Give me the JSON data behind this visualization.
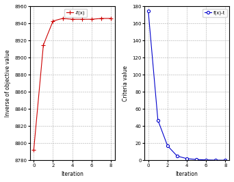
{
  "left_x": [
    0,
    1,
    2,
    3,
    4,
    5,
    6,
    7,
    8
  ],
  "left_y": [
    8792,
    8915,
    8943,
    8946,
    8945,
    8945,
    8945,
    8946,
    8946
  ],
  "left_ylabel": "Inverse of objective value",
  "left_xlabel": "Iteration",
  "left_legend": "-f(x)",
  "left_ylim": [
    8780,
    8960
  ],
  "left_yticks": [
    8780,
    8800,
    8820,
    8840,
    8860,
    8880,
    8900,
    8920,
    8940,
    8960
  ],
  "left_xticks": [
    0,
    2,
    4,
    6,
    8
  ],
  "left_color": "#cc0000",
  "right_x": [
    0,
    1,
    2,
    3,
    4,
    5,
    6,
    7,
    8
  ],
  "right_y": [
    175,
    47,
    17,
    5,
    2,
    1,
    0.5,
    0.2,
    0.1
  ],
  "right_ylabel": "Criteria value",
  "right_xlabel": "Iteration",
  "right_legend": "f(x)-t",
  "right_ylim": [
    0,
    180
  ],
  "right_yticks": [
    0,
    20,
    40,
    60,
    80,
    100,
    120,
    140,
    160,
    180
  ],
  "right_xticks": [
    0,
    2,
    4,
    6,
    8
  ],
  "right_color": "#0000cc",
  "fig_width": 3.42,
  "fig_height": 2.66,
  "dpi": 100
}
